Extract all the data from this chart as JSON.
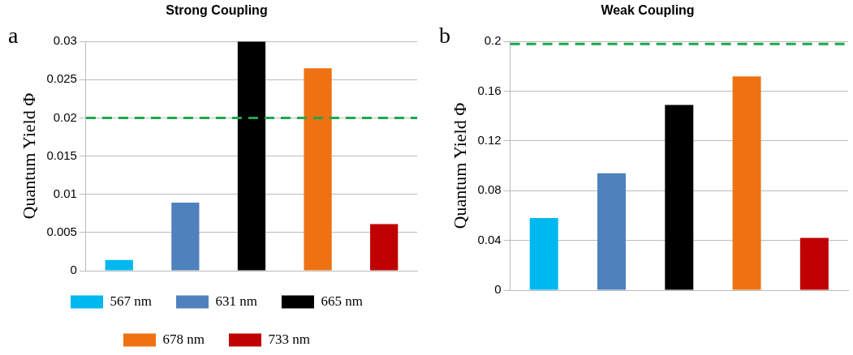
{
  "chart_data": [
    {
      "type": "bar",
      "title": "Strong Coupling",
      "ylabel": "Quantum Yield Φ",
      "annotations": [
        "a"
      ],
      "categories": [
        null,
        null,
        null,
        null,
        null
      ],
      "series": [
        {
          "name": "567 nm",
          "color": "#00b8f0",
          "values": [
            0.0014,
            null,
            null,
            null,
            null
          ]
        },
        {
          "name": "631 nm",
          "color": "#4f81bd",
          "values": [
            null,
            0.0089,
            null,
            null,
            null
          ]
        },
        {
          "name": "665 nm",
          "color": "#000000",
          "values": [
            null,
            null,
            0.03,
            null,
            null
          ]
        },
        {
          "name": "678 nm",
          "color": "#ef7212",
          "values": [
            null,
            null,
            null,
            0.0265,
            null
          ]
        },
        {
          "name": "733 nm",
          "color": "#c00000",
          "values": [
            null,
            null,
            null,
            null,
            0.0061
          ]
        }
      ],
      "ylim": [
        0,
        0.03
      ],
      "yticks": [
        0,
        0.005,
        0.01,
        0.015,
        0.02,
        0.025,
        0.03
      ],
      "ref_lines": [
        {
          "axis": "y",
          "value": 0.02,
          "color": "#1ca84c",
          "line_style": "dashed"
        }
      ],
      "grid": "y",
      "tick_labels": "y",
      "legend": "bottom"
    },
    {
      "type": "bar",
      "title": "Weak Coupling",
      "ylabel": "Quantum Yield Φ",
      "annotations": [
        "b"
      ],
      "categories": [
        null,
        null,
        null,
        null,
        null
      ],
      "series": [
        {
          "color": "#00b8f0",
          "values": [
            0.058,
            null,
            null,
            null,
            null
          ]
        },
        {
          "color": "#4f81bd",
          "values": [
            null,
            0.094,
            null,
            null,
            null
          ]
        },
        {
          "color": "#000000",
          "values": [
            null,
            null,
            0.149,
            null,
            null
          ]
        },
        {
          "color": "#ef7212",
          "values": [
            null,
            null,
            null,
            0.172,
            null
          ]
        },
        {
          "color": "#c00000",
          "values": [
            null,
            null,
            null,
            null,
            0.042
          ]
        }
      ],
      "ylim": [
        0,
        0.2
      ],
      "yticks": [
        0,
        0.04,
        0.08,
        0.12,
        0.16,
        0.2
      ],
      "ref_lines": [
        {
          "axis": "y",
          "value": 0.198,
          "color": "#1ca84c",
          "line_style": "dashed"
        }
      ],
      "grid": "y",
      "tick_labels": "y"
    }
  ]
}
